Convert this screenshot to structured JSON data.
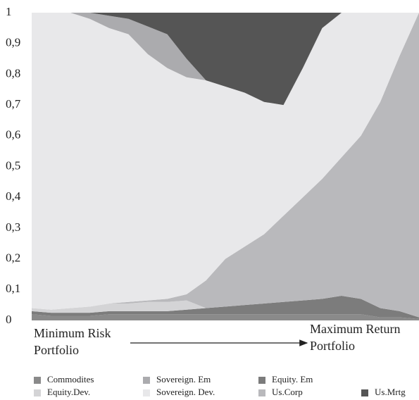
{
  "chart_data": {
    "type": "stacked_area",
    "categories": [
      null,
      null,
      null,
      null,
      null,
      null,
      null,
      null,
      null,
      null,
      null,
      null,
      null,
      null,
      null,
      null,
      null,
      null,
      null,
      null,
      null
    ],
    "series": [
      {
        "name": "Commodites",
        "color": "#8a8a8a",
        "values": [
          0.02,
          0.015,
          0.015,
          0.015,
          0.02,
          0.02,
          0.02,
          0.02,
          0.02,
          0.02,
          0.02,
          0.02,
          0.02,
          0.02,
          0.02,
          0.02,
          0.02,
          0.02,
          0.01,
          0.01,
          0.005
        ]
      },
      {
        "name": "Equity. Em",
        "color": "#7c7c7c",
        "values": [
          0.01,
          0.01,
          0.01,
          0.01,
          0.01,
          0.01,
          0.01,
          0.01,
          0.015,
          0.02,
          0.025,
          0.03,
          0.035,
          0.04,
          0.045,
          0.05,
          0.06,
          0.05,
          0.03,
          0.02,
          0.005
        ]
      },
      {
        "name": "Equity.Dev.",
        "color": "#d4d4d6",
        "values": [
          0.01,
          0.01,
          0.015,
          0.02,
          0.025,
          0.025,
          0.03,
          0.03,
          0.03,
          0,
          0,
          0,
          0,
          0,
          0,
          0,
          0,
          0,
          0,
          0,
          0
        ]
      },
      {
        "name": "Us.Corp",
        "color": "#b9b9bc",
        "values": [
          0,
          0,
          0,
          0,
          0,
          0.005,
          0.005,
          0.01,
          0.02,
          0.09,
          0.155,
          0.19,
          0.225,
          0.28,
          0.335,
          0.39,
          0.45,
          0.53,
          0.67,
          0.83,
          0.99
        ]
      },
      {
        "name": "Sovereign. Dev.",
        "color": "#e8e8ea",
        "values": [
          0.96,
          0.965,
          0.96,
          0.935,
          0.895,
          0.87,
          0.8,
          0.75,
          0.705,
          0.65,
          0.56,
          0.5,
          0.43,
          0.36,
          0.42,
          0.49,
          0.47,
          0.4,
          0.29,
          0.14,
          0
        ]
      },
      {
        "name": "Sovereign. Em",
        "color": "#ababae",
        "values": [
          0,
          0,
          0,
          0.02,
          0.04,
          0.05,
          0.09,
          0.11,
          0.06,
          0,
          0,
          0,
          0,
          0,
          0,
          0,
          0,
          0,
          0,
          0,
          0
        ]
      },
      {
        "name": "Us.Mrtg",
        "color": "#555555",
        "values": [
          0,
          0,
          0,
          0,
          0.01,
          0.02,
          0.045,
          0.07,
          0.15,
          0.22,
          0.24,
          0.26,
          0.29,
          0.3,
          0.18,
          0.05,
          0,
          0,
          0,
          0,
          0
        ]
      }
    ],
    "ylim": [
      0,
      1
    ],
    "yticks": [
      0,
      {
        "value": 0.1,
        "label": "0,1"
      },
      {
        "value": 0.2,
        "label": "0,2"
      },
      {
        "value": 0.3,
        "label": "0,3"
      },
      {
        "value": 0.4,
        "label": "0,4"
      },
      {
        "value": 0.5,
        "label": "0,5"
      },
      {
        "value": 0.6,
        "label": "0,6"
      },
      {
        "value": 0.7,
        "label": "0,7"
      },
      {
        "value": 0.8,
        "label": "0,8"
      },
      {
        "value": 0.9,
        "label": "0,9"
      },
      1
    ],
    "annotations": [
      {
        "lines": [
          "Minimum Risk",
          "Portfolio"
        ]
      },
      {
        "lines": [
          "Maximum Return",
          "Portfolio"
        ]
      }
    ]
  }
}
